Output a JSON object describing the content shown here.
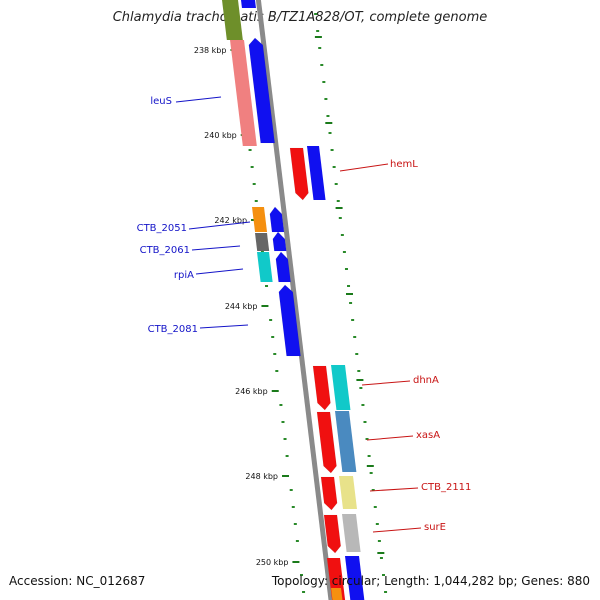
{
  "title": "Chlamydia trachomatis B/TZ1A828/OT, complete genome",
  "footer": {
    "accession": "Accession: NC_012687",
    "summary": "Topology: circular; Length: 1,044,282 bp; Genes: 880"
  },
  "colors": {
    "backbone": "#8a8a8a",
    "ruler_tick": "#1a7a1a",
    "minor_dot": "#2a8a2a",
    "forward_label": "#1414c8",
    "reverse_label": "#c81414",
    "cds_blue": "#1010f0",
    "cds_red": "#f01010"
  },
  "ruler": [
    {
      "label": "238 kbp"
    },
    {
      "label": "240 kbp"
    },
    {
      "label": "242 kbp"
    },
    {
      "label": "244 kbp"
    },
    {
      "label": "246 kbp"
    },
    {
      "label": "248 kbp"
    },
    {
      "label": "250 kbp"
    }
  ],
  "genes": [
    {
      "label": "leuS",
      "strand": "forward"
    },
    {
      "label": "CTB_2051",
      "strand": "forward"
    },
    {
      "label": "CTB_2061",
      "strand": "forward"
    },
    {
      "label": "rpiA",
      "strand": "forward"
    },
    {
      "label": "CTB_2081",
      "strand": "forward"
    },
    {
      "label": "hemL",
      "strand": "reverse"
    },
    {
      "label": "dhnA",
      "strand": "reverse"
    },
    {
      "label": "xasA",
      "strand": "reverse"
    },
    {
      "label": "CTB_2111",
      "strand": "reverse"
    },
    {
      "label": "surE",
      "strand": "reverse"
    }
  ],
  "legend_entries": []
}
